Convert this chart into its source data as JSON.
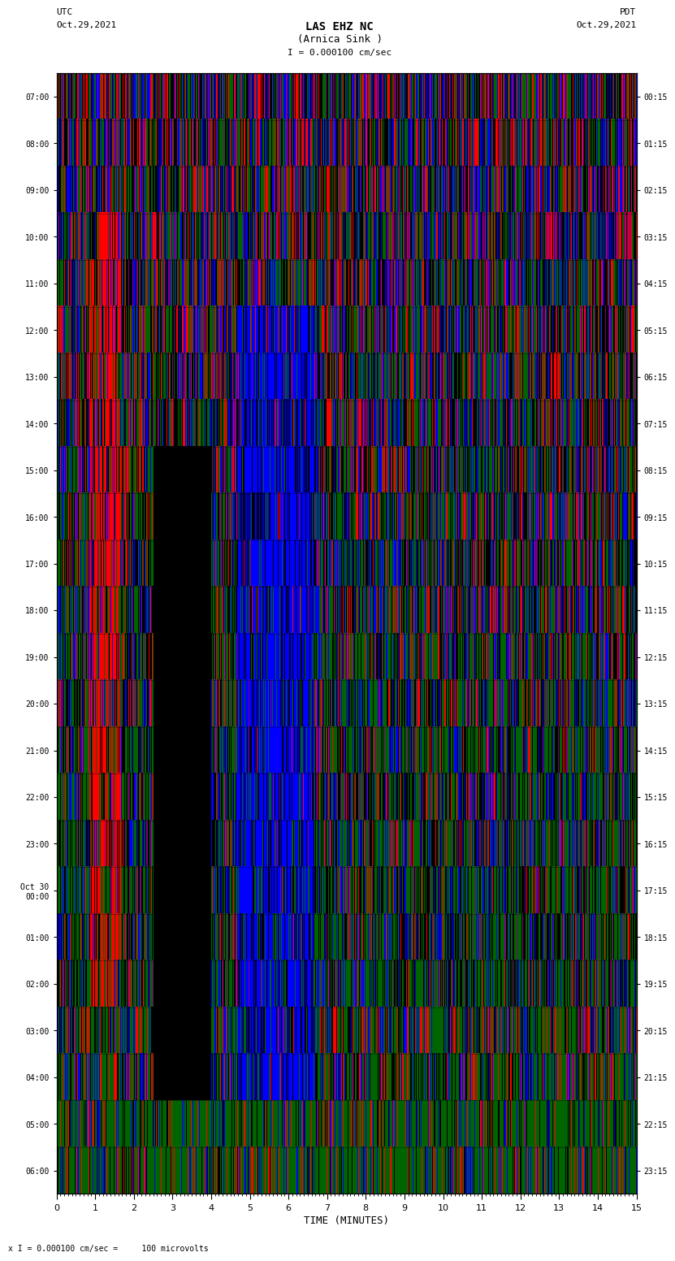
{
  "title_line1": "LAS EHZ NC",
  "title_line2": "(Arnica Sink )",
  "scale_text": "I = 0.000100 cm/sec",
  "bottom_scale_text": "x I = 0.000100 cm/sec =     100 microvolts",
  "left_label": "UTC",
  "left_date": "Oct.29,2021",
  "right_label": "PDT",
  "right_date": "Oct.29,2021",
  "xlabel": "TIME (MINUTES)",
  "left_ticks": [
    "07:00",
    "08:00",
    "09:00",
    "10:00",
    "11:00",
    "12:00",
    "13:00",
    "14:00",
    "15:00",
    "16:00",
    "17:00",
    "18:00",
    "19:00",
    "20:00",
    "21:00",
    "22:00",
    "23:00",
    "Oct 30\n00:00",
    "01:00",
    "02:00",
    "03:00",
    "04:00",
    "05:00",
    "06:00"
  ],
  "right_ticks": [
    "00:15",
    "01:15",
    "02:15",
    "03:15",
    "04:15",
    "05:15",
    "06:15",
    "07:15",
    "08:15",
    "09:15",
    "10:15",
    "11:15",
    "12:15",
    "13:15",
    "14:15",
    "15:15",
    "16:15",
    "17:15",
    "18:15",
    "19:15",
    "20:15",
    "21:15",
    "22:15",
    "23:15"
  ],
  "n_rows": 24,
  "n_cols": 900,
  "x_min": 0,
  "x_max": 15,
  "bg_color": "#000000",
  "plot_bg": "#000000",
  "fig_bg": "#ffffff",
  "colors": [
    "#ff0000",
    "#0000ff",
    "#008000",
    "#800080",
    "#000000"
  ],
  "seed": 42
}
